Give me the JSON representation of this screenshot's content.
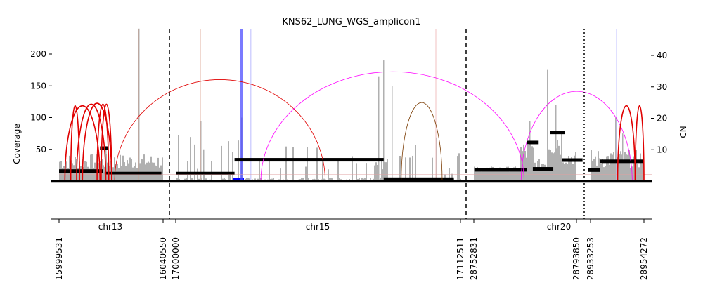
{
  "chart_data": {
    "type": "amplicon-coverage-graph",
    "title": "KNS62_LUNG_WGS_amplicon1",
    "ylabel_left": "Coverage",
    "ylabel_right": "CN",
    "ylim_left": [
      0,
      240
    ],
    "ylim_right": [
      0,
      48
    ],
    "yticks_left": [
      50,
      100,
      150,
      200
    ],
    "yticks_right": [
      10,
      20,
      30,
      40
    ],
    "segments": [
      {
        "chrom": "chr13",
        "start": 15999531,
        "end": 16040550
      },
      {
        "chrom": "chr15",
        "start": 17000000,
        "end": 17112511
      },
      {
        "chrom": "chr20",
        "start": 28752831,
        "end": 28954272,
        "mid_marker": 28793850,
        "mid_marker_next": 28933253
      }
    ],
    "position_ticks": [
      "15999531",
      "16040550",
      "17000000",
      "17112511",
      "28752831",
      "28793850",
      "28933253",
      "28954272"
    ],
    "colors": {
      "coverage": "#b0b0b0",
      "cn_segment": "#000000",
      "discordant": "#e00000",
      "inversion_link": "#ff00ff",
      "foldback": "#7a3a00",
      "focus_region": "#4d4dff"
    },
    "cn_segments": [
      {
        "pos": 0.0,
        "to": 0.075,
        "cn": 3.2
      },
      {
        "pos": 0.07,
        "to": 0.083,
        "cn": 10.5
      },
      {
        "pos": 0.078,
        "to": 0.175,
        "cn": 2.4
      },
      {
        "pos": 0.2,
        "to": 0.3,
        "cn": 2.4
      },
      {
        "pos": 0.3,
        "to": 0.555,
        "cn": 6.8
      },
      {
        "pos": 0.555,
        "to": 0.675,
        "cn": 0.6
      },
      {
        "pos": 0.71,
        "to": 0.8,
        "cn": 3.6
      },
      {
        "pos": 0.8,
        "to": 0.82,
        "cn": 12.3
      },
      {
        "pos": 0.81,
        "to": 0.845,
        "cn": 3.9
      },
      {
        "pos": 0.84,
        "to": 0.865,
        "cn": 15.5
      },
      {
        "pos": 0.86,
        "to": 0.895,
        "cn": 6.7
      },
      {
        "pos": 0.905,
        "to": 0.925,
        "cn": 3.5
      },
      {
        "pos": 0.925,
        "to": 1.0,
        "cn": 6.3
      }
    ],
    "arcs": [
      {
        "from": 0.01,
        "to": 0.07,
        "height": 24,
        "kind": "discordant"
      },
      {
        "from": 0.02,
        "to": 0.035,
        "height": 24,
        "kind": "discordant"
      },
      {
        "from": 0.03,
        "to": 0.08,
        "height": 24.5,
        "kind": "discordant"
      },
      {
        "from": 0.04,
        "to": 0.09,
        "height": 24.8,
        "kind": "discordant"
      },
      {
        "from": 0.065,
        "to": 0.085,
        "height": 24.5,
        "kind": "discordant"
      },
      {
        "from": 0.072,
        "to": 0.09,
        "height": 24.5,
        "kind": "discordant"
      },
      {
        "from": 0.095,
        "to": 0.455,
        "height": 32.3,
        "kind": "discordant"
      },
      {
        "from": 0.345,
        "to": 0.795,
        "height": 34.8,
        "kind": "inversion"
      },
      {
        "from": 0.585,
        "to": 0.655,
        "height": 25,
        "kind": "foldback"
      },
      {
        "from": 0.79,
        "to": 0.98,
        "height": 28.6,
        "kind": "inversion"
      },
      {
        "from": 0.955,
        "to": 0.985,
        "height": 24,
        "kind": "discordant"
      },
      {
        "from": 0.985,
        "to": 1.0,
        "height": 24,
        "kind": "discordant"
      }
    ]
  }
}
